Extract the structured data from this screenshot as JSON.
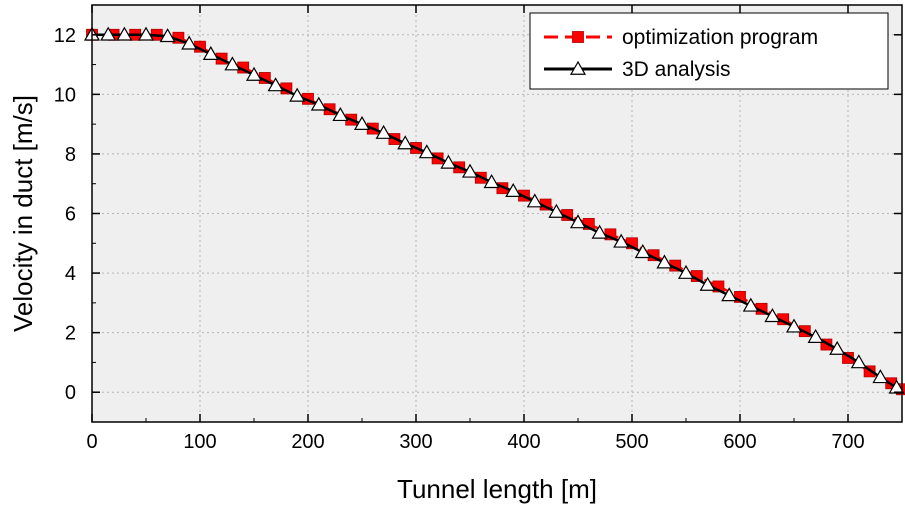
{
  "chart_data": {
    "type": "line",
    "title": "",
    "xlabel": "Tunnel length [m]",
    "ylabel": "Velocity in duct [m/s]",
    "xlim": [
      0,
      750
    ],
    "ylim": [
      -1,
      13
    ],
    "xticks": [
      0,
      100,
      200,
      300,
      400,
      500,
      600,
      700
    ],
    "yticks": [
      0,
      2,
      4,
      6,
      8,
      10,
      12
    ],
    "grid": true,
    "legend_position": "top-right",
    "background_color": "#efefef",
    "series": [
      {
        "name": "optimization program",
        "color": "#ff0000",
        "line_style": "dashed",
        "marker": "square",
        "x": [
          0,
          20,
          40,
          60,
          80,
          100,
          120,
          140,
          160,
          180,
          200,
          220,
          240,
          260,
          280,
          300,
          320,
          340,
          360,
          380,
          400,
          420,
          440,
          460,
          480,
          500,
          520,
          540,
          560,
          580,
          600,
          620,
          640,
          660,
          680,
          700,
          720,
          740,
          750
        ],
        "y": [
          12.0,
          12.0,
          12.0,
          12.0,
          11.9,
          11.6,
          11.2,
          10.9,
          10.55,
          10.2,
          9.85,
          9.5,
          9.15,
          8.85,
          8.5,
          8.2,
          7.85,
          7.55,
          7.2,
          6.85,
          6.6,
          6.3,
          5.95,
          5.65,
          5.3,
          5.0,
          4.6,
          4.25,
          3.9,
          3.55,
          3.2,
          2.8,
          2.45,
          2.05,
          1.6,
          1.15,
          0.7,
          0.3,
          0.1
        ]
      },
      {
        "name": "3D analysis",
        "color": "#000000",
        "line_style": "solid",
        "marker": "triangle-open",
        "x": [
          0,
          15,
          30,
          50,
          70,
          90,
          110,
          130,
          150,
          170,
          190,
          210,
          230,
          250,
          270,
          290,
          310,
          330,
          350,
          370,
          390,
          410,
          430,
          450,
          470,
          490,
          510,
          530,
          550,
          570,
          590,
          610,
          630,
          650,
          670,
          690,
          710,
          730,
          745
        ],
        "y": [
          12.0,
          12.0,
          12.0,
          12.0,
          11.95,
          11.7,
          11.35,
          11.0,
          10.65,
          10.3,
          9.95,
          9.65,
          9.3,
          9.0,
          8.7,
          8.35,
          8.05,
          7.7,
          7.4,
          7.05,
          6.75,
          6.4,
          6.05,
          5.7,
          5.35,
          5.05,
          4.7,
          4.35,
          4.0,
          3.6,
          3.25,
          2.9,
          2.55,
          2.2,
          1.85,
          1.45,
          1.0,
          0.5,
          0.15
        ]
      }
    ]
  }
}
